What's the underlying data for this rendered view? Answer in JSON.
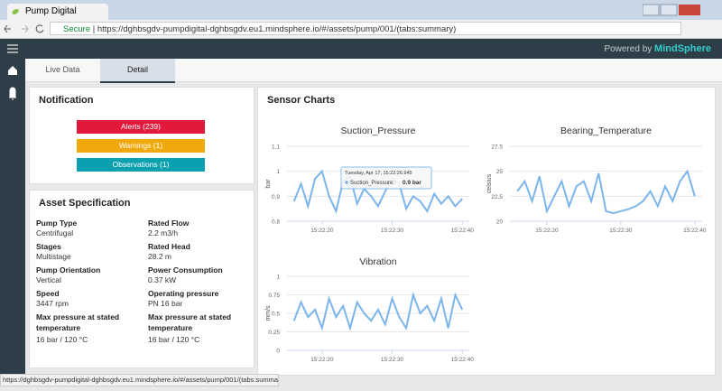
{
  "browser": {
    "tab_title": "Pump Digital",
    "secure": "Secure",
    "url": "https://dghbsgdv-pumpdigital-dghbsgdv.eu1.mindsphere.io/#/assets/pump/001/(tabs:summary)"
  },
  "header": {
    "powered_by": "Powered by",
    "brand": "MindSphere"
  },
  "tabs": [
    "Live Data",
    "Detail"
  ],
  "notification": {
    "title": "Notification",
    "buttons": [
      "Alerts (239)",
      "Warnings (1)",
      "Observations (1)"
    ]
  },
  "asset_specification": {
    "title": "Asset Specification",
    "fields": [
      {
        "label": "Pump Type",
        "value": "Centrifugal"
      },
      {
        "label": "Rated Flow",
        "value": "2.2 m3/h"
      },
      {
        "label": "Stages",
        "value": "Multistage"
      },
      {
        "label": "Rated Head",
        "value": "28.2 m"
      },
      {
        "label": "Pump Orientation",
        "value": "Vertical"
      },
      {
        "label": "Power Consumption",
        "value": "0.37 kW"
      },
      {
        "label": "Speed",
        "value": "3447 rpm"
      },
      {
        "label": "Operating pressure",
        "value": "PN 16 bar"
      },
      {
        "label": "Max pressure at stated temperature",
        "value": "16 bar / 120 °C"
      },
      {
        "label": "Max pressure at stated temperature",
        "value": "16 bar / 120 °C"
      }
    ]
  },
  "sensor_charts": {
    "title": "Sensor Charts",
    "charts": [
      {
        "type": "line",
        "title": "Suction_Pressure",
        "ylabel": "bar",
        "color": "#7cb5ec",
        "grid": true,
        "xlim": [
          15,
          41
        ],
        "ylim": [
          0.8,
          1.1
        ],
        "yticks": [
          0.8,
          0.9,
          1,
          1.1
        ],
        "xticks": [
          {
            "value": 20,
            "label": "15:22:20"
          },
          {
            "value": 30,
            "label": "15:22:30"
          },
          {
            "value": 40,
            "label": "15:22:40"
          }
        ],
        "x": [
          16,
          17,
          18,
          19,
          20,
          21,
          22,
          23,
          24,
          25,
          26,
          27,
          28,
          29,
          30,
          31,
          32,
          33,
          34,
          35,
          36,
          37,
          38,
          39,
          40
        ],
        "values": [
          0.88,
          0.95,
          0.86,
          0.97,
          1.0,
          0.9,
          0.84,
          0.96,
          0.98,
          0.87,
          0.93,
          0.9,
          0.86,
          0.92,
          0.97,
          0.95,
          0.85,
          0.9,
          0.88,
          0.84,
          0.91,
          0.87,
          0.9,
          0.86,
          0.89
        ],
        "tooltip": {
          "time": "Tuesday, Apr 17, 15:22:26.945",
          "label": "Suction_Pressure:",
          "value": "0.9 bar"
        }
      },
      {
        "type": "line",
        "title": "Bearing_Temperature",
        "ylabel": "celsius",
        "color": "#7cb5ec",
        "grid": true,
        "xlim": [
          15,
          41
        ],
        "ylim": [
          20,
          27.5
        ],
        "yticks": [
          20,
          22.5,
          25,
          27.5
        ],
        "xticks": [
          {
            "value": 20,
            "label": "15:22:20"
          },
          {
            "value": 30,
            "label": "15:22:30"
          },
          {
            "value": 40,
            "label": "15:22:40"
          }
        ],
        "x": [
          16,
          17,
          18,
          19,
          20,
          21,
          22,
          23,
          24,
          25,
          26,
          27,
          28,
          29,
          30,
          31,
          32,
          33,
          34,
          35,
          36,
          37,
          38,
          39,
          40
        ],
        "values": [
          23,
          24,
          22,
          24.5,
          21,
          22.5,
          24,
          21.5,
          23.5,
          24,
          22,
          24.8,
          21,
          20.8,
          21,
          21.2,
          21.5,
          22,
          23,
          21.5,
          23.5,
          22,
          24,
          25,
          22.5
        ]
      },
      {
        "type": "line",
        "title": "Vibration",
        "ylabel": "mm/s",
        "color": "#7cb5ec",
        "grid": true,
        "xlim": [
          15,
          41
        ],
        "ylim": [
          0,
          1
        ],
        "yticks": [
          0,
          0.25,
          0.5,
          0.75,
          1
        ],
        "xticks": [
          {
            "value": 20,
            "label": "15:22:20"
          },
          {
            "value": 30,
            "label": "15:22:30"
          },
          {
            "value": 40,
            "label": "15:22:40"
          }
        ],
        "x": [
          16,
          17,
          18,
          19,
          20,
          21,
          22,
          23,
          24,
          25,
          26,
          27,
          28,
          29,
          30,
          31,
          32,
          33,
          34,
          35,
          36,
          37,
          38,
          39,
          40
        ],
        "values": [
          0.4,
          0.65,
          0.45,
          0.55,
          0.3,
          0.7,
          0.45,
          0.6,
          0.3,
          0.65,
          0.5,
          0.4,
          0.55,
          0.35,
          0.7,
          0.45,
          0.3,
          0.75,
          0.5,
          0.6,
          0.4,
          0.7,
          0.3,
          0.75,
          0.55
        ]
      }
    ]
  }
}
